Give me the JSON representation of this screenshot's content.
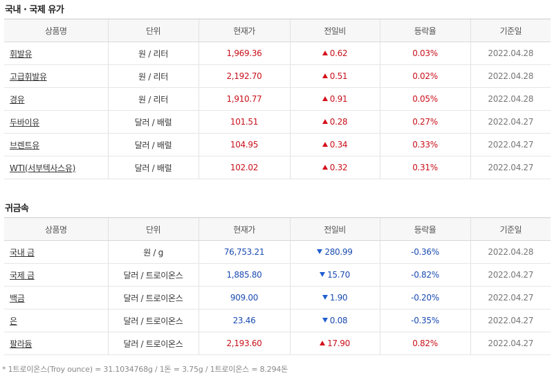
{
  "oil_section": {
    "title": "국내 · 국제 유가",
    "headers": [
      "상품명",
      "단위",
      "현재가",
      "전일비",
      "등락율",
      "기준일"
    ],
    "rows": [
      {
        "name": "휘발유",
        "unit": "원 / 리터",
        "price": "1,969.36",
        "change": "0.62",
        "direction": "up",
        "rate": "0.03%",
        "date": "2022.04.28"
      },
      {
        "name": "고급휘발유",
        "unit": "원 / 리터",
        "price": "2,192.70",
        "change": "0.51",
        "direction": "up",
        "rate": "0.02%",
        "date": "2022.04.28"
      },
      {
        "name": "경유",
        "unit": "원 / 리터",
        "price": "1,910.77",
        "change": "0.91",
        "direction": "up",
        "rate": "0.05%",
        "date": "2022.04.28"
      },
      {
        "name": "두바이유",
        "unit": "달러 / 배럴",
        "price": "101.51",
        "change": "0.28",
        "direction": "up",
        "rate": "0.27%",
        "date": "2022.04.27"
      },
      {
        "name": "브렌트유",
        "unit": "달러 / 배럴",
        "price": "104.95",
        "change": "0.34",
        "direction": "up",
        "rate": "0.33%",
        "date": "2022.04.27"
      },
      {
        "name": "WTI(서부텍사스유)",
        "unit": "달러 / 배럴",
        "price": "102.02",
        "change": "0.32",
        "direction": "up",
        "rate": "0.31%",
        "date": "2022.04.27"
      }
    ]
  },
  "metal_section": {
    "title": "귀금속",
    "headers": [
      "상품명",
      "단위",
      "현재가",
      "전일비",
      "등락율",
      "기준일"
    ],
    "rows": [
      {
        "name": "국내 금",
        "unit": "원 / g",
        "price": "76,753.21",
        "change": "280.99",
        "direction": "down",
        "rate": "-0.36%",
        "date": "2022.04.28"
      },
      {
        "name": "국제 금",
        "unit": "달러 / 트로이온스",
        "price": "1,885.80",
        "change": "15.70",
        "direction": "down",
        "rate": "-0.82%",
        "date": "2022.04.27"
      },
      {
        "name": "백금",
        "unit": "달러 / 트로이온스",
        "price": "909.00",
        "change": "1.90",
        "direction": "down",
        "rate": "-0.20%",
        "date": "2022.04.27"
      },
      {
        "name": "은",
        "unit": "달러 / 트로이온스",
        "price": "23.46",
        "change": "0.08",
        "direction": "down",
        "rate": "-0.35%",
        "date": "2022.04.27"
      },
      {
        "name": "팔라듐",
        "unit": "달러 / 트로이온스",
        "price": "2,193.60",
        "change": "17.90",
        "direction": "up",
        "rate": "0.82%",
        "date": "2022.04.27"
      }
    ]
  },
  "footnote": "* 1트로이온스(Troy ounce) = 31.1034768g / 1돈 = 3.75g / 1트로이온스 = 8.294돈",
  "colors": {
    "up": "#c8101a",
    "down": "#1a4bb0",
    "header_bg": "#f7f7f7",
    "date_text": "#777777"
  },
  "icons": {
    "up": "triangle-up-icon",
    "down": "triangle-down-icon"
  }
}
